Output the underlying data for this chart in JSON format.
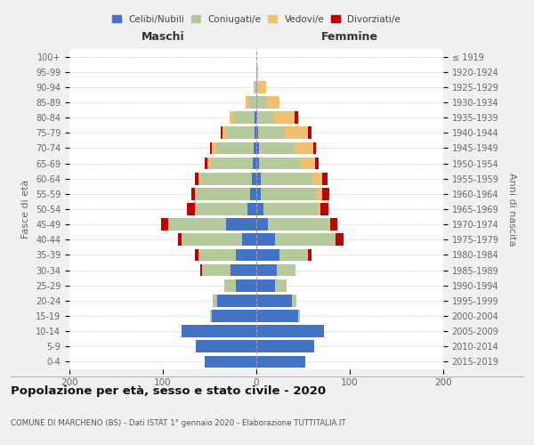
{
  "age_groups": [
    "0-4",
    "5-9",
    "10-14",
    "15-19",
    "20-24",
    "25-29",
    "30-34",
    "35-39",
    "40-44",
    "45-49",
    "50-54",
    "55-59",
    "60-64",
    "65-69",
    "70-74",
    "75-79",
    "80-84",
    "85-89",
    "90-94",
    "95-99",
    "100+"
  ],
  "birth_years": [
    "2015-2019",
    "2010-2014",
    "2005-2009",
    "2000-2004",
    "1995-1999",
    "1990-1994",
    "1985-1989",
    "1980-1984",
    "1975-1979",
    "1970-1974",
    "1965-1969",
    "1960-1964",
    "1955-1959",
    "1950-1954",
    "1945-1949",
    "1940-1944",
    "1935-1939",
    "1930-1934",
    "1925-1929",
    "1920-1924",
    "≤ 1919"
  ],
  "maschi": {
    "celibi": [
      55,
      65,
      80,
      48,
      42,
      22,
      28,
      22,
      15,
      32,
      10,
      7,
      5,
      4,
      3,
      2,
      2,
      0,
      0,
      0,
      0
    ],
    "coniugati": [
      0,
      0,
      0,
      2,
      5,
      12,
      30,
      40,
      65,
      62,
      55,
      58,
      55,
      45,
      40,
      30,
      22,
      8,
      2,
      0,
      0
    ],
    "vedovi": [
      0,
      0,
      0,
      0,
      0,
      0,
      0,
      0,
      0,
      0,
      1,
      1,
      2,
      3,
      5,
      4,
      5,
      3,
      1,
      0,
      0
    ],
    "divorziati": [
      0,
      0,
      0,
      0,
      0,
      0,
      2,
      4,
      4,
      8,
      8,
      4,
      4,
      3,
      2,
      2,
      0,
      0,
      0,
      0,
      0
    ]
  },
  "femmine": {
    "nubili": [
      52,
      62,
      72,
      45,
      38,
      20,
      22,
      25,
      20,
      12,
      8,
      5,
      5,
      3,
      3,
      2,
      1,
      0,
      0,
      0,
      0
    ],
    "coniugate": [
      0,
      0,
      0,
      2,
      5,
      12,
      20,
      30,
      65,
      65,
      58,
      60,
      55,
      45,
      38,
      28,
      18,
      10,
      2,
      0,
      0
    ],
    "vedove": [
      0,
      0,
      0,
      0,
      0,
      0,
      0,
      0,
      0,
      2,
      3,
      5,
      10,
      15,
      20,
      25,
      22,
      15,
      8,
      2,
      0
    ],
    "divorziate": [
      0,
      0,
      0,
      0,
      0,
      0,
      0,
      4,
      8,
      8,
      8,
      8,
      6,
      4,
      3,
      4,
      4,
      0,
      0,
      0,
      0
    ]
  },
  "colors": {
    "celibi_nubili": "#4472c4",
    "coniugati": "#b5c99a",
    "vedovi": "#f0c070",
    "divorziati": "#c00000"
  },
  "title": "Popolazione per età, sesso e stato civile - 2020",
  "subtitle": "COMUNE DI MARCHENO (BS) - Dati ISTAT 1° gennaio 2020 - Elaborazione TUTTITALIA.IT",
  "xlabel_left": "Maschi",
  "xlabel_right": "Femmine",
  "ylabel_left": "Fasce di età",
  "ylabel_right": "Anni di nascita",
  "xlim": 200,
  "legend_labels": [
    "Celibi/Nubili",
    "Coniugati/e",
    "Vedovi/e",
    "Divorziati/e"
  ],
  "bg_color": "#f0f0f0",
  "plot_bg": "#ffffff"
}
